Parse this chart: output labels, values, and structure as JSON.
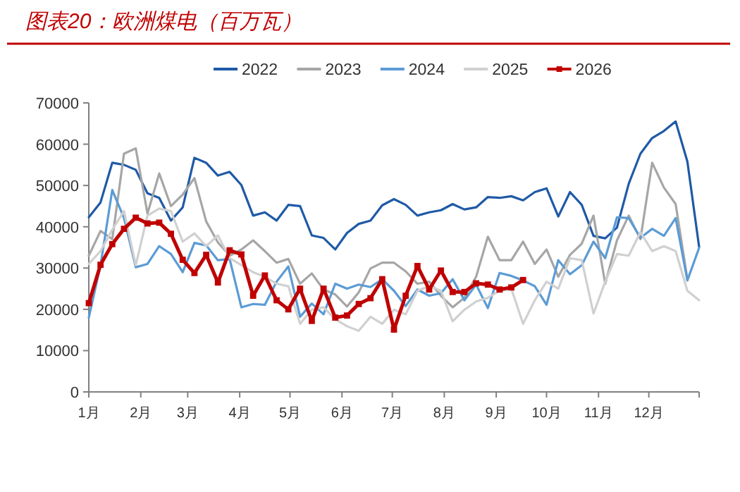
{
  "chart_data": {
    "type": "line",
    "title": "图表20：欧洲煤电（百万瓦）",
    "x": [
      "--01-01",
      "--01-08",
      "--01-15",
      "--01-22",
      "--01-29",
      "--02-05",
      "--02-12",
      "--02-19",
      "--02-26",
      "--03-05",
      "--03-12",
      "--03-19",
      "--03-26",
      "--04-02",
      "--04-09",
      "--04-16",
      "--04-23",
      "--04-30",
      "--05-07",
      "--05-14",
      "--05-21",
      "--05-28",
      "--06-04",
      "--06-11",
      "--06-18",
      "--06-25",
      "--07-02",
      "--07-09",
      "--07-16",
      "--07-23",
      "--07-30",
      "--08-06",
      "--08-13",
      "--08-20",
      "--08-27",
      "--09-03",
      "--09-10",
      "--09-17",
      "--09-24",
      "--10-01",
      "--10-08",
      "--10-15",
      "--10-22",
      "--10-29",
      "--11-05",
      "--11-12",
      "--11-19",
      "--11-26",
      "--12-03",
      "--12-10",
      "--12-17",
      "--12-24",
      "--12-31"
    ],
    "xlim": [
      "--01-01",
      "--12-31"
    ],
    "xticks": [
      {
        "value": "--01-01",
        "label": "1月"
      },
      {
        "value": "--02-01",
        "label": "2月"
      },
      {
        "value": "--03-01",
        "label": "3月"
      },
      {
        "value": "--04-01",
        "label": "4月"
      },
      {
        "value": "--05-01",
        "label": "5月"
      },
      {
        "value": "--06-01",
        "label": "6月"
      },
      {
        "value": "--07-01",
        "label": "7月"
      },
      {
        "value": "--08-01",
        "label": "8月"
      },
      {
        "value": "--09-01",
        "label": "9月"
      },
      {
        "value": "--10-01",
        "label": "10月"
      },
      {
        "value": "--11-01",
        "label": "11月"
      },
      {
        "value": "--12-01",
        "label": "12月"
      },
      {
        "value": "--12-31",
        "label": null
      }
    ],
    "ylim": [
      0,
      70000
    ],
    "yticks": [
      0,
      10000,
      20000,
      30000,
      40000,
      50000,
      60000,
      70000
    ],
    "grid": false,
    "legend": "top",
    "line_style": "solid",
    "series": [
      {
        "name": "2022",
        "color": "#1f5aa6",
        "marker": "none",
        "values": [
          42300,
          45900,
          55500,
          55000,
          53800,
          48100,
          47000,
          41500,
          44700,
          56700,
          55500,
          52400,
          53300,
          50100,
          42700,
          43500,
          41500,
          45300,
          45000,
          37900,
          37300,
          34500,
          38500,
          40700,
          41500,
          45200,
          46700,
          45300,
          42700,
          43500,
          44000,
          45500,
          44200,
          44700,
          47200,
          47000,
          47400,
          46400,
          48400,
          49300,
          42500,
          48400,
          45300,
          37800,
          37200,
          39800,
          50400,
          57700,
          61500,
          63200,
          65500,
          55800,
          35100
        ]
      },
      {
        "name": "2023",
        "color": "#a6a6a6",
        "marker": "none",
        "values": [
          33000,
          39000,
          37000,
          57700,
          59000,
          43200,
          52900,
          45000,
          47800,
          51800,
          41300,
          36200,
          33000,
          34500,
          36700,
          34100,
          31300,
          32200,
          26200,
          28700,
          24800,
          23600,
          20700,
          24100,
          29900,
          31300,
          31300,
          29200,
          26200,
          26700,
          23300,
          20500,
          22800,
          27900,
          37600,
          31900,
          31900,
          36400,
          31000,
          34500,
          27900,
          33200,
          35900,
          42700,
          26200,
          36700,
          42700,
          37000,
          55500,
          49500,
          45500,
          27300,
          null
        ]
      },
      {
        "name": "2024",
        "color": "#5b9bd5",
        "marker": "none",
        "values": [
          18000,
          30700,
          48900,
          42100,
          30200,
          31000,
          35300,
          33400,
          29000,
          36100,
          35500,
          31900,
          32200,
          20500,
          21300,
          21100,
          26700,
          30400,
          18200,
          21400,
          18800,
          26200,
          25000,
          26000,
          25400,
          27300,
          24500,
          20800,
          24800,
          23300,
          23900,
          27300,
          22200,
          26000,
          20300,
          28800,
          28100,
          27000,
          25600,
          21100,
          31900,
          28500,
          30700,
          36400,
          32400,
          42300,
          42100,
          37300,
          39500,
          37800,
          42100,
          27000,
          34900
        ]
      },
      {
        "name": "2025",
        "color": "#d0d0d0",
        "marker": "none",
        "values": [
          31000,
          34100,
          39300,
          43800,
          30700,
          42700,
          44400,
          43800,
          36400,
          38400,
          35300,
          37900,
          32400,
          30700,
          29000,
          27900,
          26200,
          25600,
          16500,
          19900,
          20500,
          17600,
          15900,
          14800,
          18200,
          16500,
          19900,
          18800,
          24500,
          25600,
          24500,
          17100,
          19900,
          21900,
          22800,
          24500,
          25000,
          16500,
          22200,
          26700,
          25000,
          32400,
          31900,
          19000,
          26700,
          33400,
          33000,
          38700,
          34100,
          35300,
          34100,
          24500,
          22200
        ]
      },
      {
        "name": "2026",
        "color": "#c00000",
        "marker": "square",
        "values": [
          21500,
          30800,
          35800,
          39500,
          42200,
          40800,
          41000,
          38300,
          32000,
          28800,
          33200,
          26500,
          34300,
          33300,
          23300,
          28200,
          22200,
          20000,
          25000,
          17200,
          25000,
          18000,
          18500,
          21300,
          22700,
          27300,
          15100,
          23300,
          30500,
          24800,
          29400,
          24200,
          24200,
          26300,
          26000,
          24800,
          25300,
          27100,
          null,
          null,
          null,
          null,
          null,
          null,
          null,
          null,
          null,
          null,
          null,
          null,
          null,
          null,
          null
        ]
      }
    ]
  }
}
